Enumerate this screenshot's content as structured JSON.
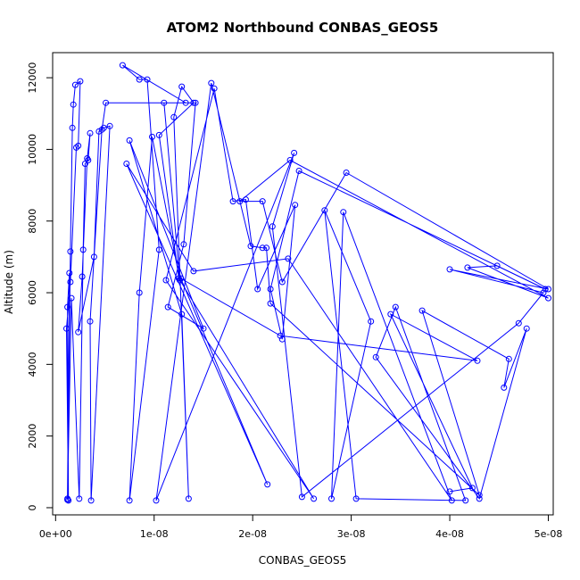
{
  "chart_data": {
    "type": "line",
    "title": "ATOM2 Northbound CONBAS_GEOS5",
    "xlabel": "CONBAS_GEOS5",
    "ylabel": "Altitude (m)",
    "xlim": [
      -3e-10,
      5.05e-08
    ],
    "ylim": [
      -200,
      12700
    ],
    "x_ticks": [
      0,
      1e-08,
      2e-08,
      3e-08,
      4e-08,
      5e-08
    ],
    "x_tick_labels": [
      "0e+00",
      "1e-08",
      "2e-08",
      "3e-08",
      "4e-08",
      "5e-08"
    ],
    "y_ticks": [
      0,
      2000,
      4000,
      6000,
      8000,
      10000,
      12000
    ],
    "y_tick_labels": [
      "0",
      "2000",
      "4000",
      "6000",
      "8000",
      "10000",
      "12000"
    ],
    "grid": false,
    "legend": "none",
    "colors": {
      "series": "#0000ff",
      "axis": "#000000",
      "background": "#ffffff"
    },
    "series": [
      {
        "style": "line-with-open-circles",
        "points": [
          [
            1.2e-09,
            250
          ],
          [
            1.5e-09,
            7150
          ],
          [
            1.7e-09,
            10600
          ],
          [
            1.8e-09,
            11250
          ],
          [
            2e-09,
            11800
          ],
          [
            2.5e-09,
            11900
          ],
          [
            2.3e-09,
            10100
          ],
          [
            2.1e-09,
            10050
          ],
          [
            1.5e-09,
            6300
          ],
          [
            1.1e-09,
            5000
          ],
          [
            1.3e-09,
            200
          ],
          [
            1.2e-09,
            5600
          ],
          [
            1.4e-09,
            6550
          ],
          [
            1.2e-09,
            220
          ],
          [
            1.6e-09,
            5850
          ],
          [
            2.4e-09,
            250
          ],
          [
            2.8e-09,
            7200
          ],
          [
            3e-09,
            9600
          ],
          [
            3.3e-09,
            9700
          ],
          [
            3.5e-09,
            10450
          ],
          [
            3.2e-09,
            9750
          ],
          [
            2.7e-09,
            6450
          ],
          [
            2.3e-09,
            4900
          ],
          [
            3.9e-09,
            7000
          ],
          [
            4.4e-09,
            10500
          ],
          [
            4.9e-09,
            10600
          ],
          [
            5.5e-09,
            10650
          ],
          [
            3.6e-09,
            200
          ],
          [
            3.5e-09,
            5200
          ],
          [
            4.7e-09,
            10550
          ],
          [
            5.1e-09,
            11300
          ],
          [
            1.32e-08,
            11300
          ],
          [
            6.8e-09,
            12350
          ],
          [
            8.5e-09,
            11950
          ],
          [
            9.3e-09,
            11950
          ],
          [
            1.05e-08,
            7200
          ],
          [
            7.5e-09,
            200
          ],
          [
            8.5e-09,
            6000
          ],
          [
            9.8e-09,
            10350
          ],
          [
            1.26e-08,
            6350
          ],
          [
            1.1e-08,
            11300
          ],
          [
            1.42e-08,
            11300
          ],
          [
            1.3e-08,
            7350
          ],
          [
            1.14e-08,
            5600
          ],
          [
            1.5e-08,
            5000
          ],
          [
            7.5e-09,
            10250
          ],
          [
            1.28e-08,
            5400
          ],
          [
            1.35e-08,
            250
          ],
          [
            1.2e-08,
            10900
          ],
          [
            1.28e-08,
            11750
          ],
          [
            1.4e-08,
            11300
          ],
          [
            1.05e-08,
            10400
          ],
          [
            1.25e-08,
            6400
          ],
          [
            2.62e-08,
            250
          ],
          [
            1.12e-08,
            6350
          ],
          [
            1.61e-08,
            11700
          ],
          [
            1.8e-08,
            8550
          ],
          [
            1.93e-08,
            8600
          ],
          [
            2.05e-08,
            6100
          ],
          [
            2.43e-08,
            8450
          ],
          [
            2.3e-08,
            4700
          ],
          [
            2.18e-08,
            6100
          ],
          [
            2.47e-08,
            9400
          ],
          [
            4.97e-08,
            6100
          ],
          [
            4.48e-08,
            6750
          ],
          [
            4.18e-08,
            6700
          ],
          [
            5e-08,
            5850
          ],
          [
            2.38e-08,
            9700
          ],
          [
            1.87e-08,
            8550
          ],
          [
            2.1e-08,
            8550
          ],
          [
            2.3e-08,
            6300
          ],
          [
            2.95e-08,
            9350
          ],
          [
            5e-08,
            6100
          ],
          [
            4e-08,
            6650
          ],
          [
            4.95e-08,
            6000
          ],
          [
            4.7e-08,
            5150
          ],
          [
            2.5e-08,
            300
          ],
          [
            2.2e-08,
            7850
          ],
          [
            2.42e-08,
            9900
          ],
          [
            1.02e-08,
            200
          ],
          [
            1.58e-08,
            11850
          ],
          [
            1.98e-08,
            7300
          ],
          [
            2.1e-08,
            7250
          ],
          [
            2.14e-08,
            7250
          ],
          [
            2.18e-08,
            5700
          ],
          [
            4.3e-08,
            350
          ],
          [
            3.72e-08,
            5500
          ],
          [
            4.6e-08,
            4150
          ],
          [
            4.55e-08,
            3350
          ],
          [
            4.78e-08,
            5000
          ],
          [
            4.3e-08,
            250
          ],
          [
            3.25e-08,
            4200
          ],
          [
            3.45e-08,
            5600
          ],
          [
            4.16e-08,
            200
          ],
          [
            3.05e-08,
            250
          ],
          [
            2.73e-08,
            8300
          ],
          [
            3.2e-08,
            5200
          ],
          [
            2.8e-08,
            250
          ],
          [
            2.92e-08,
            8250
          ],
          [
            4.02e-08,
            200
          ],
          [
            2.36e-08,
            6950
          ],
          [
            1.4e-08,
            6600
          ],
          [
            7.2e-09,
            9600
          ],
          [
            2.15e-08,
            650
          ],
          [
            1.27e-08,
            6400
          ],
          [
            2.28e-08,
            4800
          ],
          [
            4.28e-08,
            4100
          ],
          [
            3.4e-08,
            5400
          ],
          [
            4.23e-08,
            550
          ],
          [
            4e-08,
            450
          ]
        ]
      }
    ]
  }
}
